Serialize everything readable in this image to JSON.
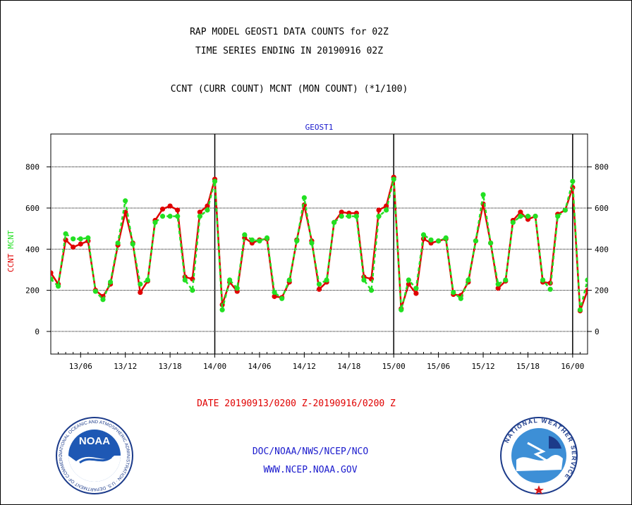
{
  "header": {
    "line1": "RAP MODEL GEOST1 DATA COUNTS for 02Z",
    "line2": "TIME SERIES ENDING IN 20190916 02Z",
    "line3": "CCNT (CURR COUNT) MCNT (MON COUNT) (*1/100)"
  },
  "footer": {
    "date_range": "DATE 20190913/0200 Z-20190916/0200 Z",
    "org": "DOC/NOAA/NWS/NCEP/NCO",
    "url": "WWW.NCEP.NOAA.GOV"
  },
  "logos": {
    "noaa_label": "NOAA",
    "noaa_ring_text": "NATIONAL OCEANIC AND ATMOSPHERIC ADMINISTRATION · U.S. DEPARTMENT OF COMMERCE",
    "nws_ring_text": "NATIONAL WEATHER SERVICE"
  },
  "colors": {
    "ccnt": "#e00000",
    "mcnt": "#22e022",
    "title_blue": "#1a1acd"
  },
  "chart_data": {
    "type": "line",
    "title": "GEOST1",
    "ylabel_parts": [
      {
        "text": "CCNT",
        "color": "#e00000"
      },
      {
        "text": "MCNT",
        "color": "#22e022"
      }
    ],
    "xlim": [
      0,
      72
    ],
    "ylim": [
      -110,
      960
    ],
    "y_ticks": [
      0,
      200,
      400,
      600,
      800
    ],
    "x_ticks": [
      {
        "x": 4,
        "label": "13/06"
      },
      {
        "x": 10,
        "label": "13/12"
      },
      {
        "x": 16,
        "label": "13/18"
      },
      {
        "x": 22,
        "label": "14/00"
      },
      {
        "x": 28,
        "label": "14/06"
      },
      {
        "x": 34,
        "label": "14/12"
      },
      {
        "x": 40,
        "label": "14/18"
      },
      {
        "x": 46,
        "label": "15/00"
      },
      {
        "x": 52,
        "label": "15/06"
      },
      {
        "x": 58,
        "label": "15/12"
      },
      {
        "x": 64,
        "label": "15/18"
      },
      {
        "x": 70,
        "label": "16/00"
      }
    ],
    "day_boundaries": [
      22,
      46,
      70
    ],
    "grid": true,
    "series": [
      {
        "name": "CCNT",
        "color": "#e00000",
        "x": [
          0,
          1,
          2,
          3,
          4,
          5,
          6,
          7,
          8,
          9,
          10,
          11,
          12,
          13,
          14,
          15,
          16,
          17,
          18,
          19,
          20,
          21,
          22,
          23,
          24,
          25,
          26,
          27,
          28,
          29,
          30,
          31,
          32,
          33,
          34,
          35,
          36,
          37,
          38,
          39,
          40,
          41,
          42,
          43,
          44,
          45,
          46,
          47,
          48,
          49,
          50,
          51,
          52,
          53,
          54,
          55,
          56,
          57,
          58,
          59,
          60,
          61,
          62,
          63,
          64,
          65,
          66,
          67,
          68,
          69,
          70,
          71,
          72
        ],
        "values": [
          285,
          230,
          445,
          410,
          425,
          440,
          200,
          170,
          230,
          420,
          580,
          430,
          190,
          245,
          540,
          595,
          610,
          590,
          265,
          255,
          580,
          610,
          740,
          130,
          240,
          195,
          455,
          430,
          445,
          450,
          170,
          165,
          240,
          445,
          615,
          440,
          205,
          240,
          530,
          580,
          575,
          575,
          265,
          255,
          590,
          610,
          750,
          110,
          230,
          185,
          450,
          430,
          440,
          450,
          180,
          175,
          240,
          440,
          620,
          430,
          210,
          245,
          540,
          580,
          545,
          560,
          240,
          235,
          570,
          590,
          700,
          100,
          200
        ]
      },
      {
        "name": "MCNT",
        "color": "#22e022",
        "x": [
          0,
          1,
          2,
          3,
          4,
          5,
          6,
          7,
          8,
          9,
          10,
          11,
          12,
          13,
          14,
          15,
          16,
          17,
          18,
          19,
          20,
          21,
          22,
          23,
          24,
          25,
          26,
          27,
          28,
          29,
          30,
          31,
          32,
          33,
          34,
          35,
          36,
          37,
          38,
          39,
          40,
          41,
          42,
          43,
          44,
          45,
          46,
          47,
          48,
          49,
          50,
          51,
          52,
          53,
          54,
          55,
          56,
          57,
          58,
          59,
          60,
          61,
          62,
          63,
          64,
          65,
          66,
          67,
          68,
          69,
          70,
          71,
          72
        ],
        "values": [
          255,
          220,
          475,
          450,
          450,
          455,
          195,
          155,
          240,
          430,
          635,
          425,
          230,
          250,
          530,
          560,
          560,
          560,
          250,
          200,
          560,
          590,
          730,
          105,
          250,
          210,
          470,
          445,
          440,
          455,
          190,
          160,
          250,
          440,
          650,
          430,
          230,
          250,
          530,
          560,
          560,
          560,
          250,
          200,
          560,
          590,
          740,
          105,
          250,
          210,
          470,
          445,
          440,
          455,
          190,
          160,
          250,
          440,
          665,
          430,
          230,
          250,
          530,
          560,
          560,
          560,
          250,
          205,
          560,
          590,
          730,
          105,
          250
        ]
      }
    ]
  }
}
